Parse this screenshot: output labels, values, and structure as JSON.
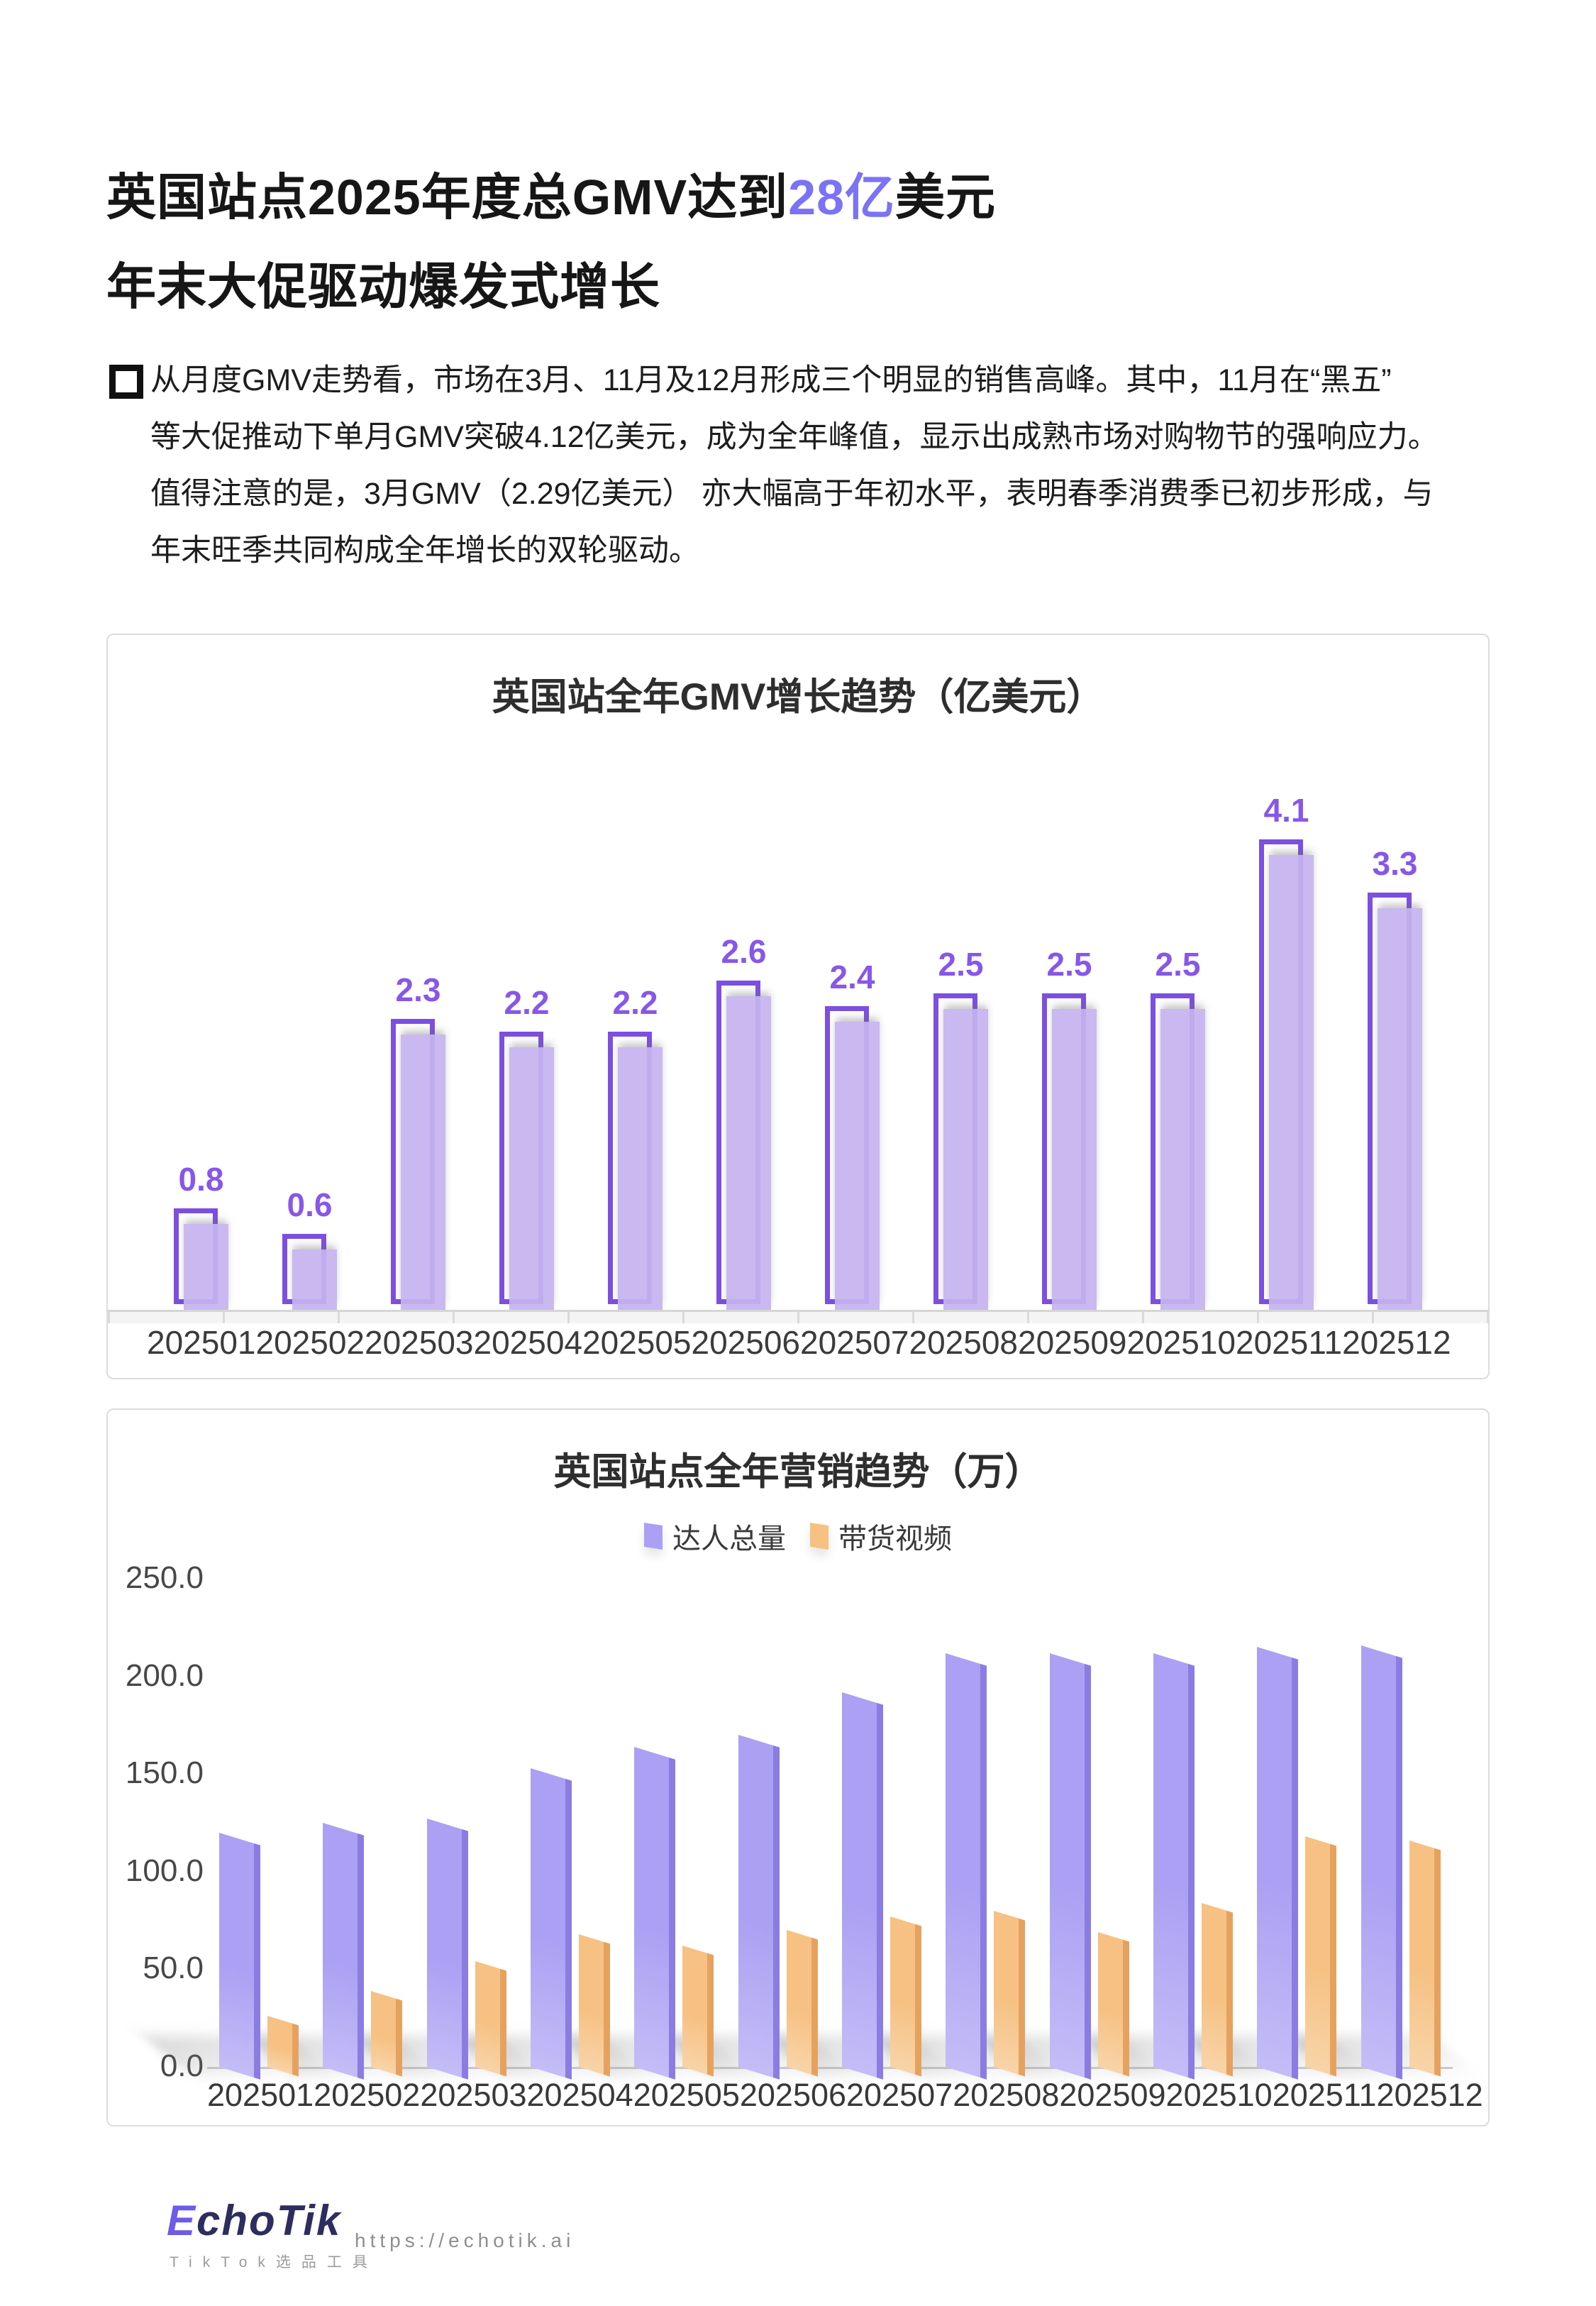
{
  "page": {
    "title_line1_prefix": "英国站点2025年度总GMV达到",
    "title_line1_accent": "28亿",
    "title_line1_suffix": "美元",
    "title_line2": "年末大促驱动爆发式增长",
    "accent_color": "#7B72F5"
  },
  "paragraph": {
    "bullet_icon": "square-bullet-icon",
    "lines": [
      "从月度GMV走势看，市场在3月、11月及12月形成三个明显的销售高峰。其中，11月在“黑五”",
      "等大促推动下单月GMV突破4.12亿美元，成为全年峰值，显示出成熟市场对购物节的强响应力。",
      "值得注意的是，3月GMV（2.29亿美元） 亦大幅高于年初水平，表明春季消费季已初步形成，与",
      "年末旺季共同构成全年增长的双轮驱动。"
    ]
  },
  "chart_data": [
    {
      "type": "bar",
      "title": "英国站全年GMV增长趋势（亿美元）",
      "categories": [
        "202501",
        "202502",
        "202503",
        "202504",
        "202505",
        "202506",
        "202507",
        "202508",
        "202509",
        "202510",
        "202511",
        "202512"
      ],
      "values": [
        0.8,
        0.6,
        2.3,
        2.2,
        2.2,
        2.6,
        2.4,
        2.5,
        2.5,
        2.5,
        4.1,
        3.3
      ],
      "ylim": [
        0,
        4.5
      ],
      "grid": false,
      "legend_position": "none",
      "bar_border_color": "#7C4FE0",
      "bar_fill_color": "#C5B4EF",
      "label_color": "#8757E8"
    },
    {
      "type": "bar",
      "title": "英国站点全年营销趋势（万）",
      "categories": [
        "202501",
        "202502",
        "202503",
        "202504",
        "202505",
        "202506",
        "202507",
        "202508",
        "202509",
        "202510",
        "202511",
        "202512"
      ],
      "series": [
        {
          "name": "达人总量",
          "color": "#ABA0F3",
          "side_color": "#8B7CE2",
          "values": [
            120,
            125,
            127,
            153,
            164,
            170,
            192,
            212,
            212,
            212,
            215,
            216
          ]
        },
        {
          "name": "带货视频",
          "color": "#F6C183",
          "side_color": "#E5A25F",
          "values": [
            26,
            39,
            54,
            68,
            62,
            70,
            77,
            80,
            69,
            84,
            118,
            116
          ]
        }
      ],
      "ylim": [
        0,
        250
      ],
      "yticks": [
        "250.0",
        "200.0",
        "150.0",
        "100.0",
        "50.0",
        "0.0"
      ],
      "grid": false,
      "legend_position": "top"
    }
  ],
  "footer": {
    "logo_e": "E",
    "logo_rest": "choTik",
    "logo_sub": "TikTok选品工具",
    "url": "https://echotik.ai"
  }
}
